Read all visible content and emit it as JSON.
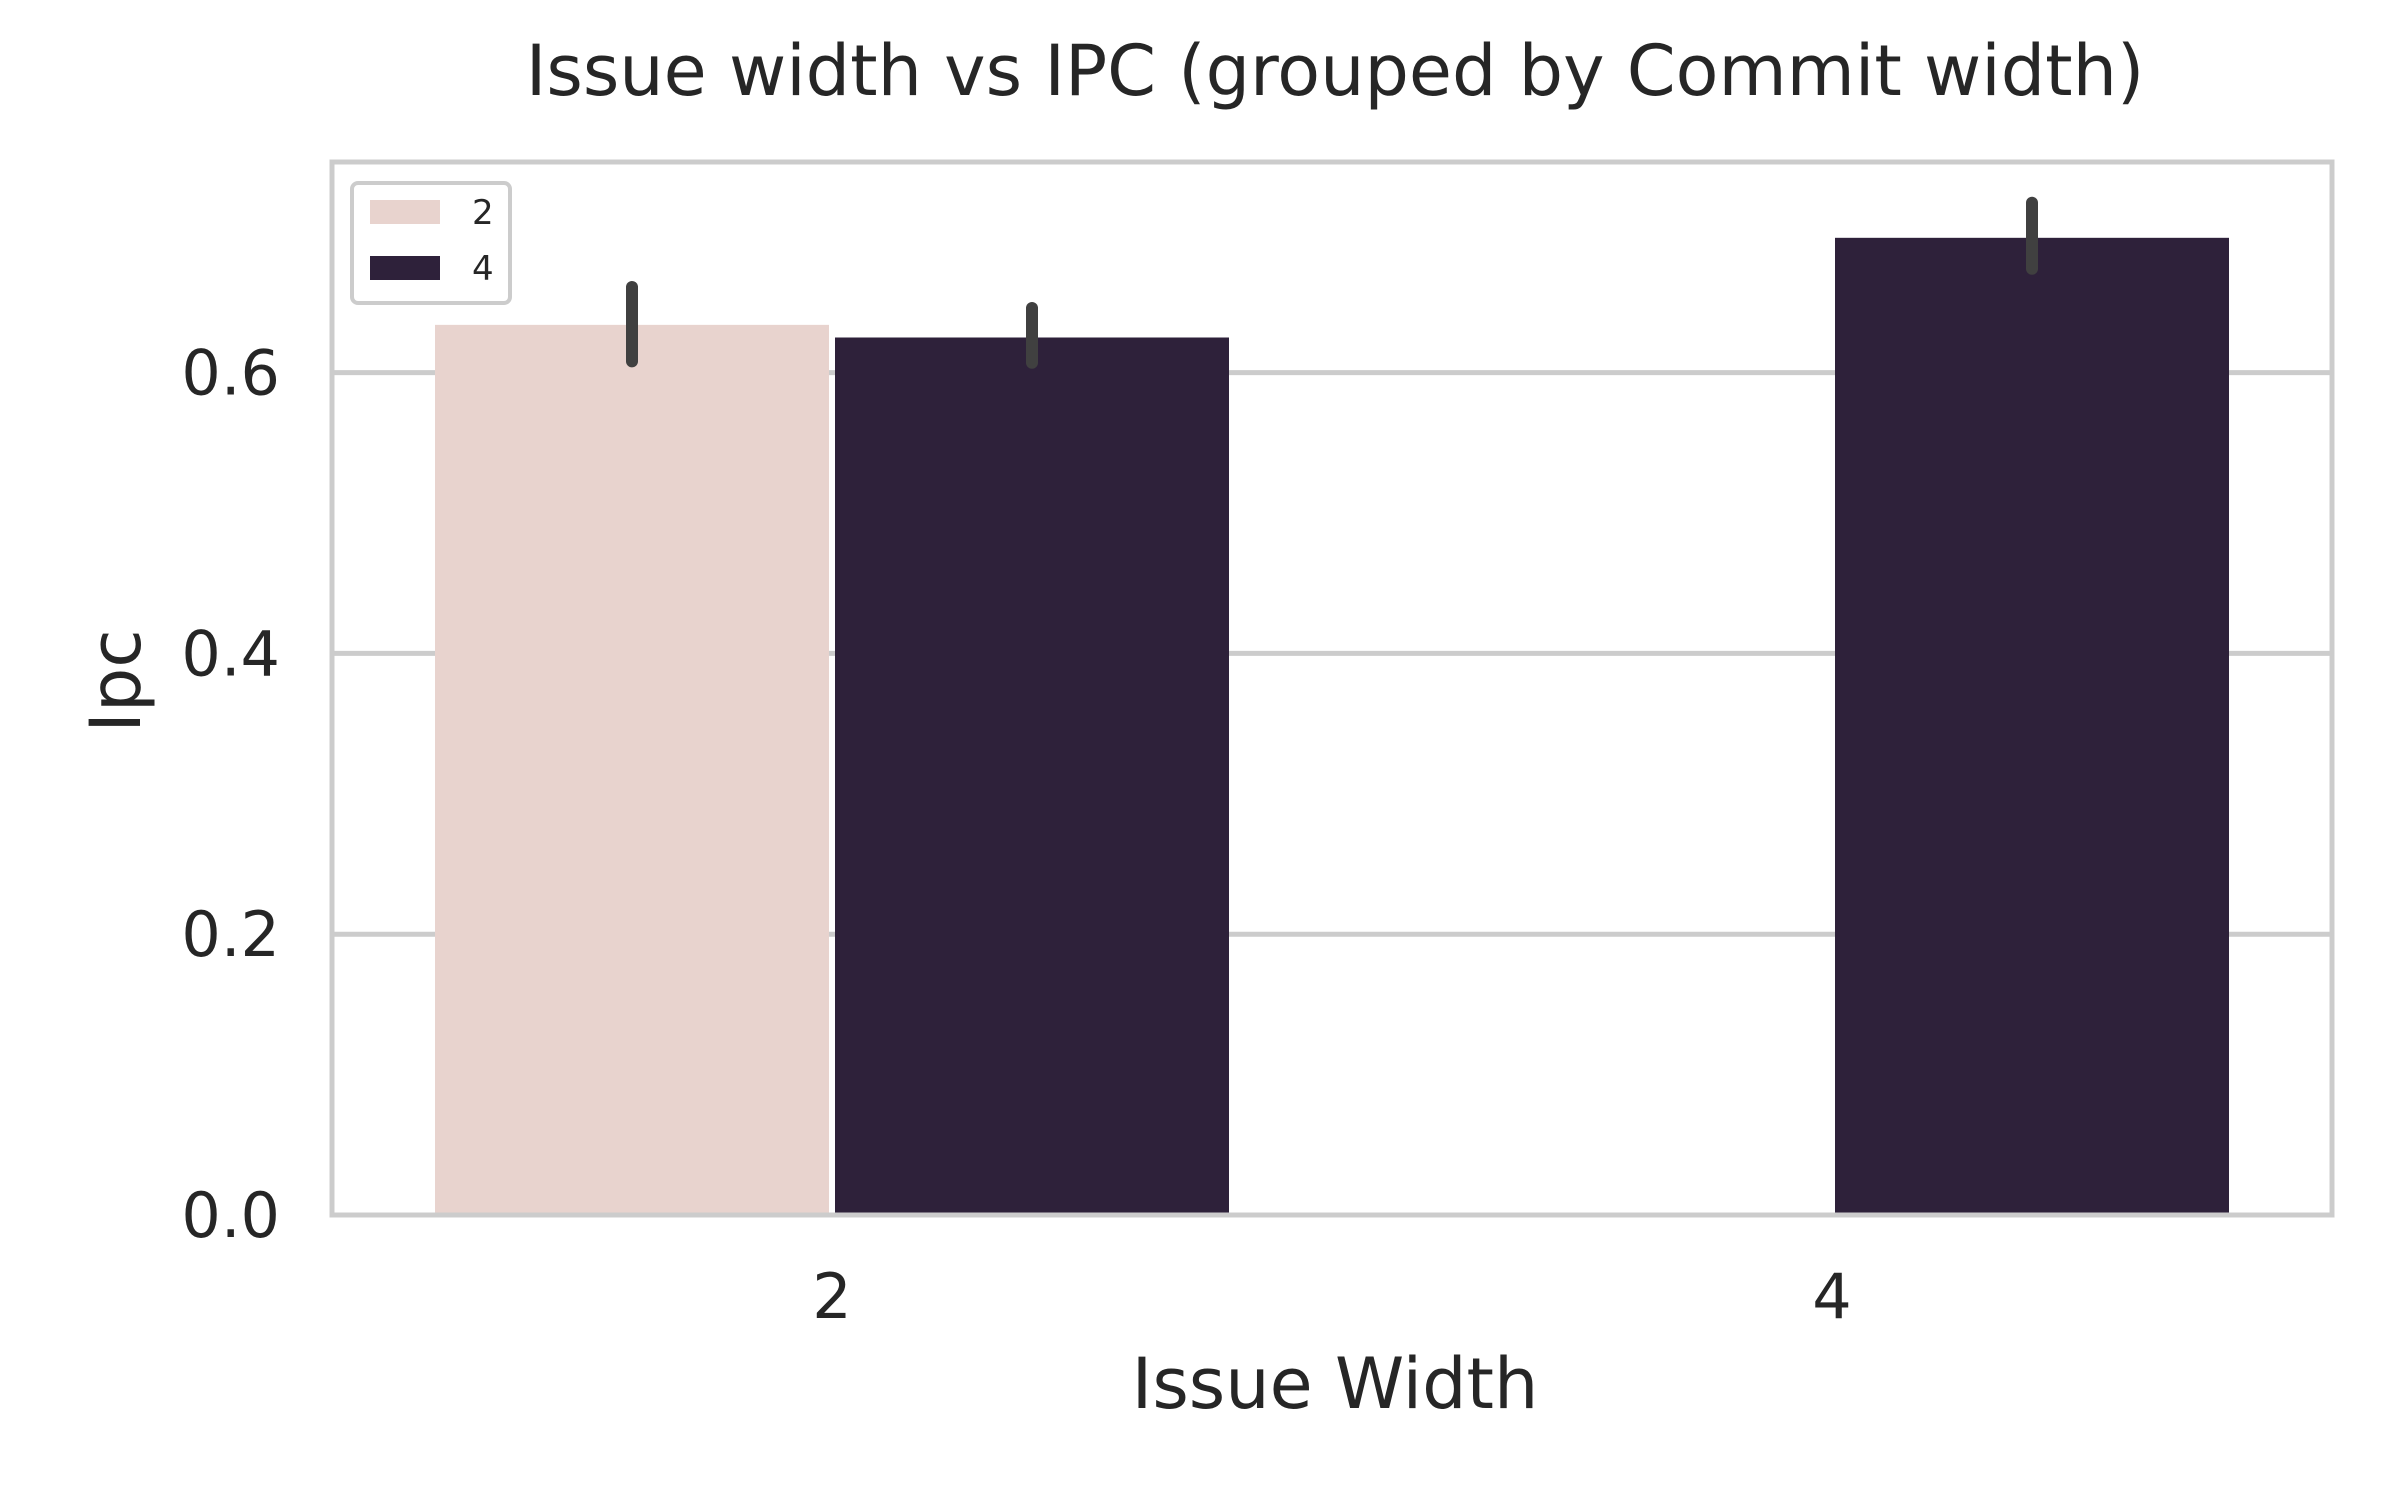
{
  "chart_data": {
    "type": "bar",
    "title": "Issue width vs IPC (grouped by Commit width)",
    "xlabel": "Issue Width",
    "ylabel": "Ipc",
    "categories": [
      "2",
      "4"
    ],
    "ylim": [
      0,
      0.75
    ],
    "yticks": [
      0.0,
      0.2,
      0.4,
      0.6
    ],
    "grid": "y",
    "legend": {
      "placement": "top-left",
      "title": ""
    },
    "series": [
      {
        "name": "2",
        "color": "#e8d3ce",
        "values": [
          0.634,
          null
        ],
        "err_low": [
          0.608,
          null
        ],
        "err_high": [
          0.661,
          null
        ]
      },
      {
        "name": "4",
        "color": "#2e213a",
        "values": [
          0.625,
          0.696
        ],
        "err_low": [
          0.607,
          0.674
        ],
        "err_high": [
          0.646,
          0.721
        ]
      }
    ],
    "colors": {
      "grid": "#cccccc",
      "frame": "#cccccc",
      "errorbar": "#404040",
      "text": "#262626"
    }
  }
}
